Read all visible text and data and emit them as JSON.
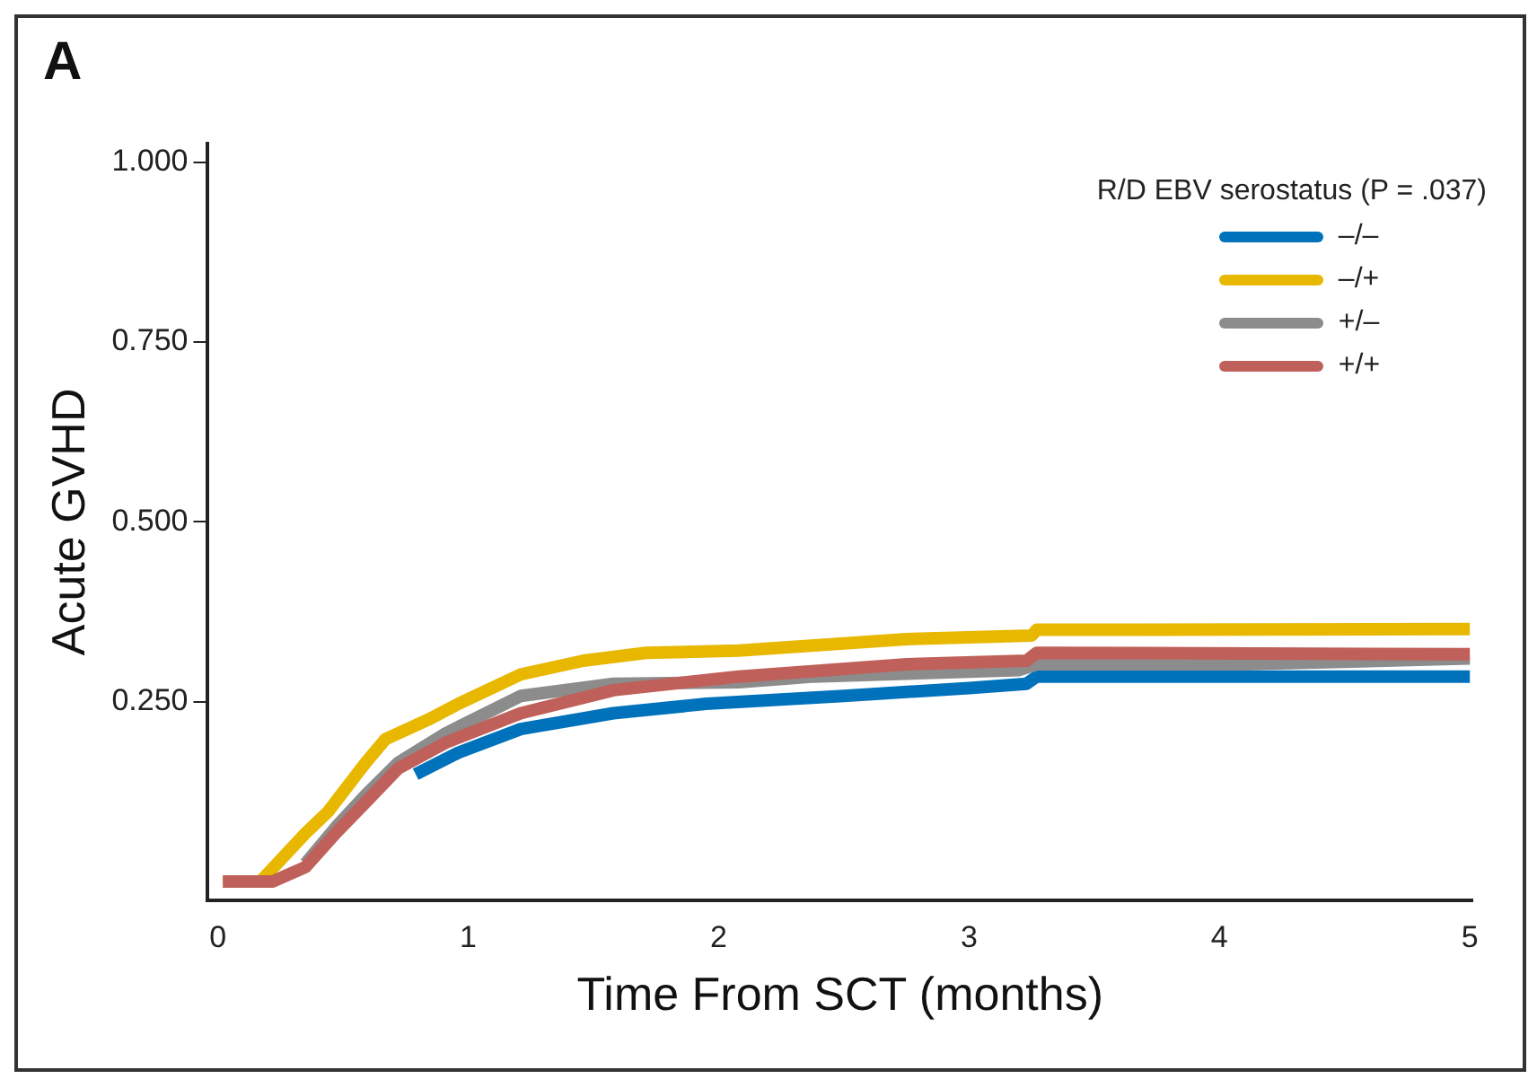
{
  "chart_data": {
    "type": "line",
    "xlabel": "Time From SCT (months)",
    "ylabel": "Acute GVHD",
    "legend_title": "R/D EBV serostatus (P = .037)",
    "annotations": [
      "A"
    ],
    "xlim": [
      -0.04,
      5.01
    ],
    "xticks": [
      0,
      1,
      2,
      3,
      4,
      5
    ],
    "ylim": [
      -0.026,
      1.026
    ],
    "yticks": [
      {
        "value": 0.25,
        "label": "0.250"
      },
      {
        "value": 0.5,
        "label": "0.500"
      },
      {
        "value": 0.75,
        "label": "0.750"
      },
      {
        "value": 1,
        "label": "1.000"
      }
    ],
    "grid": false,
    "legend": "top right",
    "marker": "none",
    "line_style": "solid",
    "series": [
      {
        "name": "–/–",
        "color": "#0072bc",
        "x": [
          0.79,
          0.96,
          1.21,
          1.58,
          1.95,
          2.5,
          3.0,
          3.23,
          3.27,
          5.0
        ],
        "values": [
          0.149,
          0.179,
          0.212,
          0.234,
          0.247,
          0.258,
          0.269,
          0.275,
          0.285,
          0.285
        ]
      },
      {
        "name": "–/+",
        "color": "#e8b800",
        "x": [
          0.02,
          0.17,
          0.35,
          0.44,
          0.59,
          0.67,
          0.84,
          0.96,
          1.21,
          1.46,
          1.71,
          2.08,
          2.75,
          3.25,
          3.27,
          5.0
        ],
        "values": [
          0,
          0,
          0.067,
          0.097,
          0.165,
          0.198,
          0.225,
          0.247,
          0.288,
          0.307,
          0.318,
          0.321,
          0.337,
          0.342,
          0.35,
          0.351
        ]
      },
      {
        "name": "+/–",
        "color": "#8c8c8c",
        "x": [
          0.35,
          0.47,
          0.59,
          0.72,
          0.91,
          1.21,
          1.58,
          2.08,
          2.38,
          3.2,
          3.27,
          4.1,
          5.0
        ],
        "values": [
          0.025,
          0.075,
          0.12,
          0.165,
          0.206,
          0.258,
          0.275,
          0.277,
          0.285,
          0.294,
          0.302,
          0.302,
          0.31
        ]
      },
      {
        "name": "+/+",
        "color": "#c0605a",
        "x": [
          0.02,
          0.22,
          0.35,
          0.47,
          0.59,
          0.72,
          0.91,
          1.21,
          1.58,
          2.08,
          2.75,
          3.23,
          3.27,
          5.0
        ],
        "values": [
          0,
          0,
          0.02,
          0.067,
          0.11,
          0.157,
          0.193,
          0.234,
          0.266,
          0.285,
          0.302,
          0.307,
          0.318,
          0.316
        ]
      }
    ]
  }
}
